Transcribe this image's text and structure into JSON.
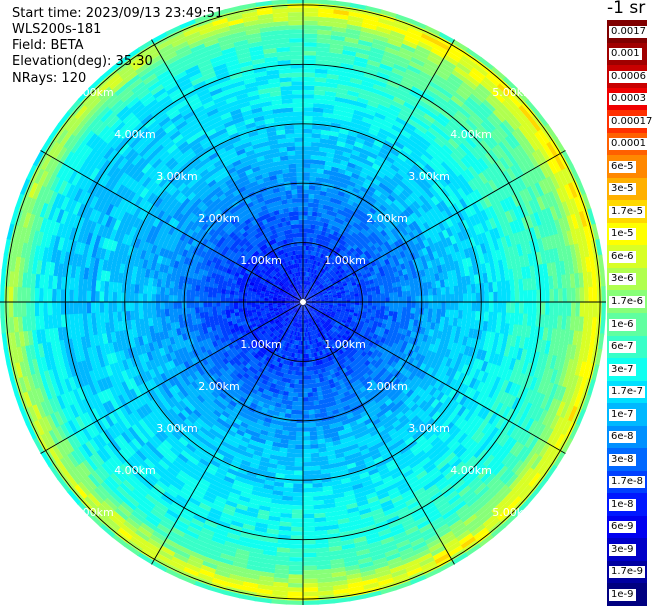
{
  "header": {
    "start_time": "Start time: 2023/09/13 23:49:51",
    "instrument": "WLS200s-181",
    "field": "Field: BETA",
    "elevation": "Elevation(deg): 35.30",
    "nrays": "NRays: 120"
  },
  "colorbar": {
    "unit": "-1 sr",
    "labels": [
      "0.0017",
      "0.001",
      "0.0006",
      "0.0003",
      "0.00017",
      "0.0001",
      "6e-5",
      "3e-5",
      "1.7e-5",
      "1e-5",
      "6e-6",
      "3e-6",
      "1.7e-6",
      "1e-6",
      "6e-7",
      "3e-7",
      "1.7e-7",
      "1e-7",
      "6e-8",
      "3e-8",
      "1.7e-8",
      "1e-8",
      "6e-9",
      "3e-9",
      "1.7e-9",
      "1e-9"
    ],
    "colors": [
      "#800000",
      "#a00000",
      "#c80000",
      "#f00000",
      "#ff3000",
      "#ff6000",
      "#ff8800",
      "#ffb000",
      "#ffd800",
      "#ffff00",
      "#d8ff26",
      "#b0ff4f",
      "#88ff78",
      "#60ffa0",
      "#38ffc8",
      "#10fff0",
      "#00e0ff",
      "#00b8ff",
      "#0090ff",
      "#0068ff",
      "#0040ff",
      "#0018ff",
      "#0000f0",
      "#0000c8",
      "#0000a0",
      "#000080"
    ]
  },
  "chart_data": {
    "type": "heatmap",
    "projection": "polar PPI",
    "field": "BETA",
    "elevation_deg": 35.3,
    "nrays": 120,
    "range_rings_km": [
      1.0,
      2.0,
      3.0,
      4.0,
      5.0
    ],
    "range_ring_labels": [
      "1.00km",
      "2.00km",
      "3.00km",
      "4.00km",
      "5.00km"
    ],
    "max_range_km": 5.1,
    "radial_lines_deg": [
      0,
      30,
      60,
      90,
      120,
      150,
      180,
      210,
      240,
      270,
      300,
      330
    ],
    "color_scale": "log",
    "value_range": [
      1e-09,
      0.0017
    ],
    "radial_profile_km_vs_log10beta": [
      [
        0.0,
        -7.9
      ],
      [
        0.5,
        -7.8
      ],
      [
        1.0,
        -7.7
      ],
      [
        1.4,
        -7.5
      ],
      [
        2.0,
        -7.2
      ],
      [
        2.5,
        -6.9
      ],
      [
        3.0,
        -6.8
      ],
      [
        3.5,
        -6.6
      ],
      [
        4.0,
        -6.5
      ],
      [
        4.5,
        -6.2
      ],
      [
        4.75,
        -5.6
      ],
      [
        4.9,
        -5.2
      ],
      [
        5.0,
        -5.4
      ],
      [
        5.1,
        -6.6
      ]
    ]
  }
}
